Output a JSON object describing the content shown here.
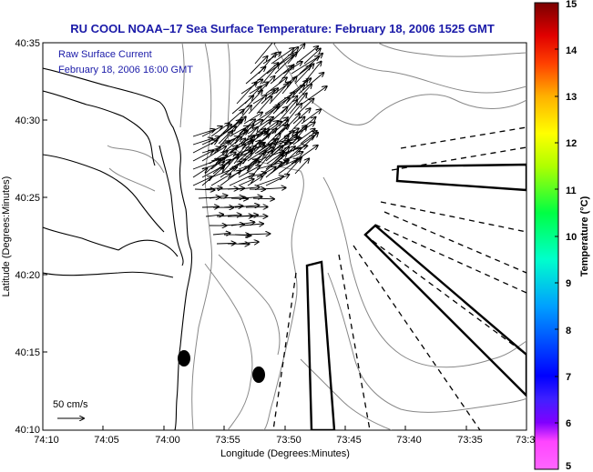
{
  "title": "RU COOL  NOAA–17  Sea Surface Temperature:  February 18, 2006 1525 GMT",
  "overlay": {
    "line1": "Raw Surface Current",
    "line2": "February 18, 2006 16:00 GMT"
  },
  "scale": {
    "label": "50 cm/s"
  },
  "x_axis": {
    "label": "Longitude (Degrees:Minutes)",
    "ticks": [
      "74:10",
      "74:05",
      "74:00",
      "73:55",
      "73:50",
      "73:45",
      "73:40",
      "73:35",
      "73:3"
    ]
  },
  "y_axis": {
    "label": "Latitude (Degrees:Minutes)",
    "ticks": [
      "40:35",
      "40:30",
      "40:25",
      "40:20",
      "40:15",
      "40:10"
    ]
  },
  "colorbar": {
    "label": "Temperature (°C)",
    "ticks": [
      "15",
      "14",
      "13",
      "12",
      "11",
      "10",
      "9",
      "8",
      "7",
      "6",
      "5"
    ],
    "colors": [
      "#8b0000",
      "#ff0000",
      "#ff8000",
      "#ffff00",
      "#00ff66",
      "#00c8ff",
      "#0000ff",
      "#8000ff",
      "#ff66ff"
    ]
  },
  "colors": {
    "title": "#1a1aa8",
    "contour": "#888888",
    "coast": "#000000"
  }
}
